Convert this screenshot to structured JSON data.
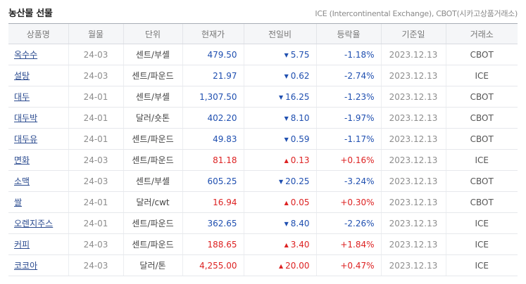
{
  "title": "농산물 선물",
  "note": "ICE (Intercontinental Exchange), CBOT(시카고상품거래소)",
  "colors": {
    "up": "#dd2222",
    "down": "#1f4fb0",
    "link": "#2a4a8f"
  },
  "table": {
    "headers": [
      "상품명",
      "월물",
      "단위",
      "현재가",
      "전일비",
      "등락율",
      "기준일",
      "거래소"
    ],
    "rows": [
      {
        "name": "옥수수",
        "month": "24-03",
        "unit": "센트/부셸",
        "price": "479.50",
        "dir": "down",
        "arrow": "▼",
        "change": "5.75",
        "rate": "-1.18%",
        "date": "2023.12.13",
        "exchange": "CBOT"
      },
      {
        "name": "설탕",
        "month": "24-03",
        "unit": "센트/파운드",
        "price": "21.97",
        "dir": "down",
        "arrow": "▼",
        "change": "0.62",
        "rate": "-2.74%",
        "date": "2023.12.13",
        "exchange": "ICE"
      },
      {
        "name": "대두",
        "month": "24-01",
        "unit": "센트/부셸",
        "price": "1,307.50",
        "dir": "down",
        "arrow": "▼",
        "change": "16.25",
        "rate": "-1.23%",
        "date": "2023.12.13",
        "exchange": "CBOT"
      },
      {
        "name": "대두박",
        "month": "24-01",
        "unit": "달러/숏톤",
        "price": "402.20",
        "dir": "down",
        "arrow": "▼",
        "change": "8.10",
        "rate": "-1.97%",
        "date": "2023.12.13",
        "exchange": "CBOT"
      },
      {
        "name": "대두유",
        "month": "24-01",
        "unit": "센트/파운드",
        "price": "49.83",
        "dir": "down",
        "arrow": "▼",
        "change": "0.59",
        "rate": "-1.17%",
        "date": "2023.12.13",
        "exchange": "CBOT"
      },
      {
        "name": "면화",
        "month": "24-03",
        "unit": "센트/파운드",
        "price": "81.18",
        "dir": "up",
        "arrow": "▲",
        "change": "0.13",
        "rate": "+0.16%",
        "date": "2023.12.13",
        "exchange": "ICE"
      },
      {
        "name": "소맥",
        "month": "24-03",
        "unit": "센트/부셸",
        "price": "605.25",
        "dir": "down",
        "arrow": "▼",
        "change": "20.25",
        "rate": "-3.24%",
        "date": "2023.12.13",
        "exchange": "CBOT"
      },
      {
        "name": "쌀",
        "month": "24-01",
        "unit": "달러/cwt",
        "price": "16.94",
        "dir": "up",
        "arrow": "▲",
        "change": "0.05",
        "rate": "+0.30%",
        "date": "2023.12.13",
        "exchange": "CBOT"
      },
      {
        "name": "오렌지주스",
        "month": "24-01",
        "unit": "센트/파운드",
        "price": "362.65",
        "dir": "down",
        "arrow": "▼",
        "change": "8.40",
        "rate": "-2.26%",
        "date": "2023.12.13",
        "exchange": "ICE"
      },
      {
        "name": "커피",
        "month": "24-03",
        "unit": "센트/파운드",
        "price": "188.65",
        "dir": "up",
        "arrow": "▲",
        "change": "3.40",
        "rate": "+1.84%",
        "date": "2023.12.13",
        "exchange": "ICE"
      },
      {
        "name": "코코아",
        "month": "24-03",
        "unit": "달러/톤",
        "price": "4,255.00",
        "dir": "up",
        "arrow": "▲",
        "change": "20.00",
        "rate": "+0.47%",
        "date": "2023.12.13",
        "exchange": "ICE"
      }
    ]
  }
}
